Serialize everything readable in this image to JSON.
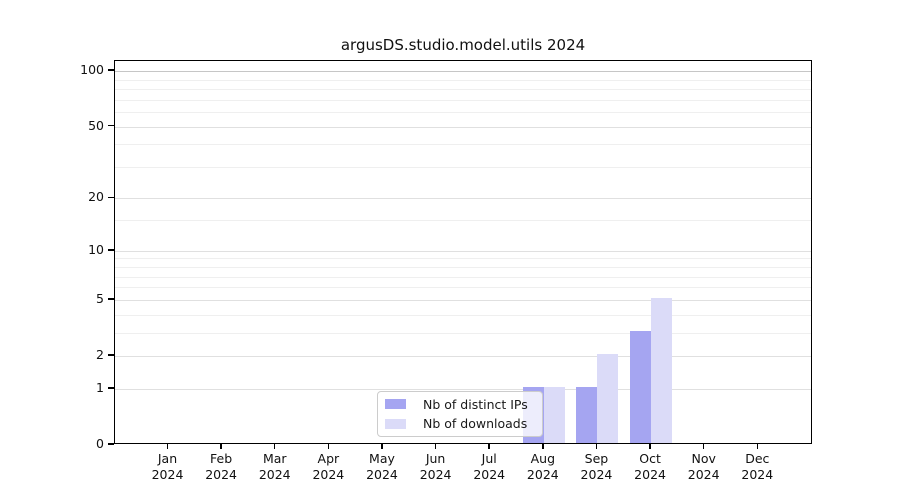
{
  "chart_data": {
    "type": "bar",
    "title": "argusDS.studio.model.utils 2024",
    "x_tick_months": [
      "Jan",
      "Feb",
      "Mar",
      "Apr",
      "May",
      "Jun",
      "Jul",
      "Aug",
      "Sep",
      "Oct",
      "Nov",
      "Dec"
    ],
    "x_tick_year": "2024",
    "series": [
      {
        "name": "Nb of distinct IPs",
        "color": "#a5a5f1",
        "values": [
          0,
          0,
          0,
          0,
          0,
          0,
          0,
          1,
          1,
          3,
          0,
          0
        ]
      },
      {
        "name": "Nb of downloads",
        "color": "#dbdbf8",
        "values": [
          0,
          0,
          0,
          0,
          0,
          0,
          0,
          1,
          2,
          5,
          0,
          0
        ]
      }
    ],
    "y_axis": {
      "scale": "log1p",
      "ylim": [
        0,
        115
      ],
      "tick_labels": [
        0,
        1,
        2,
        5,
        10,
        20,
        50,
        100
      ],
      "major_gridlines": [
        1,
        2,
        5,
        10,
        20,
        50
      ],
      "minor_gridlines": [
        3,
        4,
        6,
        7,
        8,
        9,
        15,
        30,
        40,
        60,
        70,
        80,
        90
      ],
      "top_gridline": 100
    },
    "legend": {
      "entries": [
        "Nb of distinct IPs",
        "Nb of downloads"
      ],
      "position": "lower center"
    },
    "grid": true,
    "colors": {
      "grid_minor": "#efefef",
      "grid_major": "#e0e0e0",
      "grid_top": "#c6c6c6",
      "spine": "#000000",
      "bar_distinct_ips": "#a5a5f1",
      "bar_downloads": "#dbdbf8"
    }
  }
}
